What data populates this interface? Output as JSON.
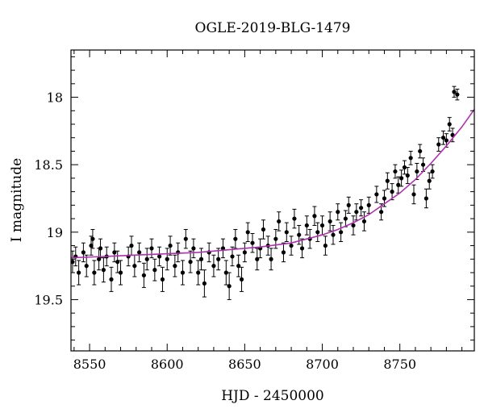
{
  "chart_data": {
    "type": "scatter",
    "title": "OGLE-2019-BLG-1479",
    "xlabel": "HJD - 2450000",
    "ylabel": "I magnitude",
    "xlim": [
      8538,
      8798
    ],
    "ylim": [
      19.88,
      17.65
    ],
    "y_inverted": true,
    "x_ticks": [
      8550,
      8600,
      8650,
      8700,
      8750
    ],
    "x_tick_labels": [
      "8550",
      "8600",
      "8650",
      "8700",
      "8750"
    ],
    "y_ticks": [
      18,
      18.5,
      19,
      19.5
    ],
    "y_tick_labels": [
      "18",
      "18.5",
      "19",
      "19.5"
    ],
    "grid": false,
    "marker_color": "#000000",
    "model_color": "#b030b0",
    "model_curve": {
      "x": [
        8538,
        8560,
        8580,
        8600,
        8620,
        8640,
        8660,
        8680,
        8700,
        8710,
        8720,
        8730,
        8740,
        8750,
        8760,
        8770,
        8780,
        8790,
        8798
      ],
      "y": [
        19.19,
        19.18,
        19.17,
        19.16,
        19.15,
        19.13,
        19.11,
        19.08,
        19.02,
        18.98,
        18.93,
        18.87,
        18.79,
        18.71,
        18.61,
        18.49,
        18.36,
        18.22,
        18.09
      ]
    },
    "data_points": {
      "x": [
        8539,
        8541,
        8543,
        8546,
        8548,
        8551,
        8552,
        8553,
        8556,
        8557,
        8559,
        8561,
        8564,
        8566,
        8568,
        8570,
        8575,
        8577,
        8579,
        8582,
        8585,
        8587,
        8590,
        8592,
        8595,
        8597,
        8600,
        8602,
        8605,
        8607,
        8610,
        8612,
        8615,
        8617,
        8620,
        8622,
        8624,
        8627,
        8630,
        8633,
        8636,
        8638,
        8640,
        8642,
        8644,
        8646,
        8648,
        8650,
        8652,
        8655,
        8658,
        8660,
        8662,
        8665,
        8667,
        8670,
        8672,
        8675,
        8677,
        8680,
        8682,
        8685,
        8687,
        8690,
        8692,
        8695,
        8697,
        8700,
        8702,
        8705,
        8707,
        8710,
        8712,
        8715,
        8717,
        8720,
        8722,
        8725,
        8727,
        8730,
        8735,
        8738,
        8740,
        8742,
        8745,
        8747,
        8749,
        8751,
        8753,
        8755,
        8757,
        8759,
        8761,
        8763,
        8765,
        8767,
        8769,
        8771,
        8775,
        8778,
        8780,
        8782,
        8784,
        8785,
        8787
      ],
      "y": [
        19.22,
        19.18,
        19.3,
        19.15,
        19.25,
        19.1,
        19.05,
        19.3,
        19.2,
        19.12,
        19.28,
        19.18,
        19.35,
        19.15,
        19.22,
        19.3,
        19.18,
        19.1,
        19.25,
        19.15,
        19.32,
        19.2,
        19.12,
        19.28,
        19.18,
        19.35,
        19.2,
        19.1,
        19.25,
        19.15,
        19.3,
        19.05,
        19.22,
        19.12,
        19.3,
        19.2,
        19.38,
        19.15,
        19.25,
        19.2,
        19.12,
        19.3,
        19.4,
        19.18,
        19.05,
        19.25,
        19.35,
        19.15,
        19.0,
        19.08,
        19.2,
        19.12,
        18.98,
        19.1,
        19.2,
        19.05,
        18.92,
        19.15,
        19.0,
        19.1,
        18.9,
        19.02,
        19.12,
        18.95,
        19.05,
        18.88,
        19.0,
        18.95,
        19.1,
        18.92,
        19.02,
        18.85,
        19.0,
        18.9,
        18.8,
        18.95,
        18.85,
        18.82,
        18.92,
        18.8,
        18.72,
        18.85,
        18.75,
        18.62,
        18.7,
        18.55,
        18.65,
        18.6,
        18.52,
        18.58,
        18.45,
        18.72,
        18.55,
        18.4,
        18.5,
        18.75,
        18.62,
        18.55,
        18.35,
        18.3,
        18.32,
        18.2,
        18.28,
        17.96,
        17.98
      ],
      "yerr": [
        0.08,
        0.07,
        0.09,
        0.07,
        0.08,
        0.07,
        0.07,
        0.09,
        0.08,
        0.07,
        0.09,
        0.07,
        0.09,
        0.07,
        0.08,
        0.09,
        0.07,
        0.07,
        0.08,
        0.07,
        0.09,
        0.08,
        0.07,
        0.08,
        0.07,
        0.09,
        0.08,
        0.07,
        0.08,
        0.07,
        0.09,
        0.07,
        0.08,
        0.07,
        0.09,
        0.08,
        0.1,
        0.07,
        0.08,
        0.08,
        0.07,
        0.09,
        0.1,
        0.07,
        0.07,
        0.08,
        0.09,
        0.07,
        0.07,
        0.07,
        0.08,
        0.07,
        0.07,
        0.07,
        0.08,
        0.07,
        0.07,
        0.07,
        0.07,
        0.07,
        0.07,
        0.07,
        0.07,
        0.07,
        0.07,
        0.07,
        0.07,
        0.07,
        0.07,
        0.07,
        0.07,
        0.06,
        0.07,
        0.06,
        0.06,
        0.07,
        0.06,
        0.06,
        0.07,
        0.06,
        0.06,
        0.06,
        0.06,
        0.06,
        0.06,
        0.05,
        0.06,
        0.06,
        0.05,
        0.06,
        0.05,
        0.07,
        0.06,
        0.05,
        0.05,
        0.07,
        0.06,
        0.05,
        0.05,
        0.05,
        0.05,
        0.05,
        0.05,
        0.04,
        0.04
      ]
    }
  }
}
